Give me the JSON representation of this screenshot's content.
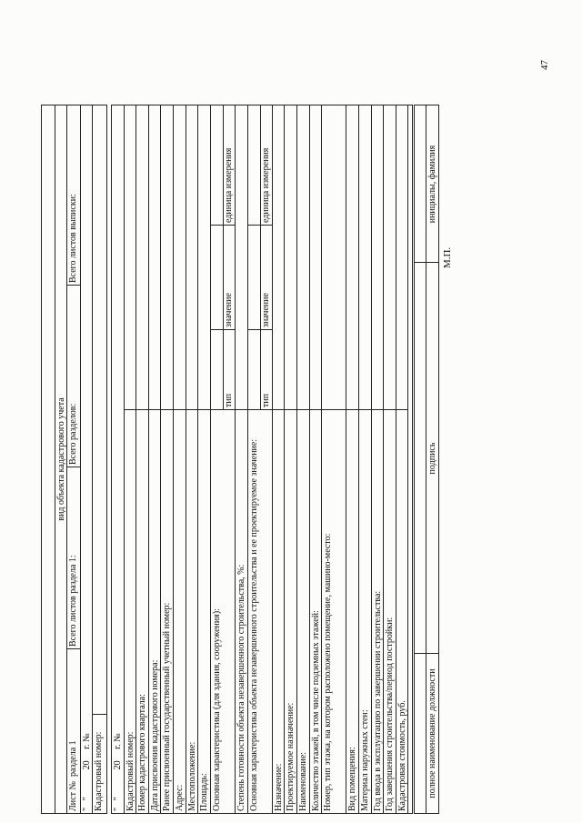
{
  "page_number": "47",
  "header": {
    "object_type": "вид объекта кадастрового учета",
    "sheet_label": "Лист №",
    "section_label": "раздела 1",
    "sheets_section": "Всего листов раздела 1:",
    "sections_total": "Всего разделов:",
    "sheets_total": "Всего листов выписки:",
    "date_line": "\"   \"            20     г. №",
    "cadastral_number": "Кадастровый номер:"
  },
  "table": {
    "date_line": "\"   \"            20     г. №",
    "rows": [
      {
        "label": "Кадастровый номер:"
      },
      {
        "label": "Номер кадастрового квартала:"
      },
      {
        "label": "Дата присвоения кадастрового номера:"
      },
      {
        "label": "Ранее присвоенный государственный учетный номер:"
      },
      {
        "label": "Адрес:"
      },
      {
        "label": "Местоположение:"
      },
      {
        "label": "Площадь:"
      },
      {
        "label": "Основная характеристика (для здания, сооружения):",
        "sub": true
      },
      {
        "label": "Степень готовности объекта незавершенного строительства, %:"
      },
      {
        "label": "Основная характеристика объекта незавершенного строительства и ее проектируемое значение:",
        "sub": true
      },
      {
        "label": "Назначение:"
      },
      {
        "label": "Проектируемое назначение:"
      },
      {
        "label": "Наименование:"
      },
      {
        "label": "Количество этажей, в том числе подземных этажей:"
      },
      {
        "label": "Номер, тип этажа, на котором расположено помещение, машино-место:",
        "two": true
      },
      {
        "label": "Вид помещения:"
      },
      {
        "label": "Материал наружных стен:"
      },
      {
        "label": "Год ввода в эксплуатацию по завершении строительства:"
      },
      {
        "label": "Год завершения строительства/период постройки:"
      },
      {
        "label": "Кадастровая стоимость, руб."
      }
    ],
    "sub_headers": {
      "type": "тип",
      "value": "значение",
      "unit": "единица измерения"
    }
  },
  "signature": {
    "position": "полное наименование должности",
    "sign": "подпись",
    "name": "инициалы, фамилия",
    "stamp": "М.П."
  }
}
